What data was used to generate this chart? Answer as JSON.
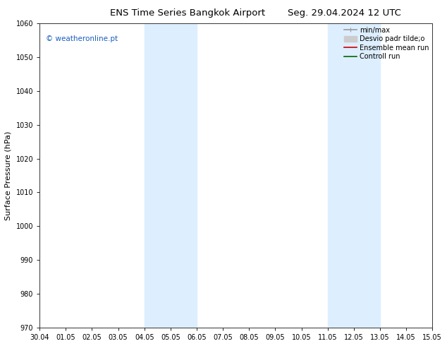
{
  "title_left": "ENS Time Series Bangkok Airport",
  "title_right": "Seg. 29.04.2024 12 UTC",
  "ylabel": "Surface Pressure (hPa)",
  "ylim": [
    970,
    1060
  ],
  "yticks": [
    970,
    980,
    990,
    1000,
    1010,
    1020,
    1030,
    1040,
    1050,
    1060
  ],
  "x_labels": [
    "30.04",
    "01.05",
    "02.05",
    "03.05",
    "04.05",
    "05.05",
    "06.05",
    "07.05",
    "08.05",
    "09.05",
    "10.05",
    "11.05",
    "12.05",
    "13.05",
    "14.05",
    "15.05"
  ],
  "x_values": [
    0,
    1,
    2,
    3,
    4,
    5,
    6,
    7,
    8,
    9,
    10,
    11,
    12,
    13,
    14,
    15
  ],
  "shaded_regions": [
    {
      "xstart": 4,
      "xend": 6,
      "color": "#ddeeff"
    },
    {
      "xstart": 11,
      "xend": 13,
      "color": "#ddeeff"
    }
  ],
  "watermark_text": "© weatheronline.pt",
  "watermark_color": "#1a5fbf",
  "legend_entries": [
    {
      "label": "min/max",
      "color": "#999999",
      "lw": 1.2
    },
    {
      "label": "Desvio padr tilde;o",
      "color": "#cccccc",
      "lw": 5
    },
    {
      "label": "Ensemble mean run",
      "color": "#cc0000",
      "lw": 1.2
    },
    {
      "label": "Controll run",
      "color": "#006600",
      "lw": 1.2
    }
  ],
  "background_color": "#ffffff",
  "plot_bg_color": "#ffffff",
  "title_fontsize": 9.5,
  "ylabel_fontsize": 8,
  "tick_fontsize": 7,
  "legend_fontsize": 7
}
